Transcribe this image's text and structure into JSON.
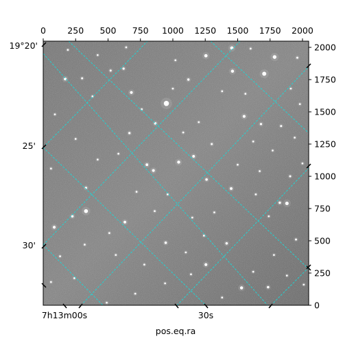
{
  "chart_data": {
    "type": "scatter",
    "subtype": "astronomical-image-wcs",
    "xlabel": "pos.eq.ra",
    "pixel_axes": {
      "xlim": [
        0,
        2048
      ],
      "ylim": [
        0,
        2048
      ],
      "top_ticks": [
        "0",
        "250",
        "500",
        "750",
        "1000",
        "1250",
        "1500",
        "1750",
        "2000"
      ],
      "top_tick_values": [
        0,
        250,
        500,
        750,
        1000,
        1250,
        1500,
        1750,
        2000
      ],
      "right_ticks": [
        "0",
        "250",
        "500",
        "750",
        "1000",
        "1250",
        "1500",
        "1750",
        "2000"
      ],
      "right_tick_values": [
        0,
        250,
        500,
        750,
        1000,
        1250,
        1500,
        1750,
        2000
      ]
    },
    "ra_ticks": [
      {
        "label": "7h13m00s",
        "value": "7h13m00s"
      },
      {
        "label": "30s",
        "value": "7h13m30s"
      }
    ],
    "dec_ticks": [
      {
        "label": "19°20'",
        "value": "19°20'"
      },
      {
        "label": "25'",
        "value": "19°25'"
      },
      {
        "label": "30'",
        "value": "19°30'"
      }
    ],
    "grid": true,
    "grid_color": "#22d3d3",
    "background_color": "#7a7a7a",
    "stars": [
      {
        "x": 950,
        "y": 1565,
        "m": 4.2
      },
      {
        "x": 1705,
        "y": 1795,
        "m": 3.2
      },
      {
        "x": 1785,
        "y": 1925,
        "m": 2.8
      },
      {
        "x": 330,
        "y": 730,
        "m": 3.0
      },
      {
        "x": 1880,
        "y": 790,
        "m": 2.6
      },
      {
        "x": 1255,
        "y": 1935,
        "m": 2.4
      },
      {
        "x": 1455,
        "y": 1995,
        "m": 2.4
      },
      {
        "x": 1460,
        "y": 1815,
        "m": 2.2
      },
      {
        "x": 680,
        "y": 1650,
        "m": 2.0
      },
      {
        "x": 1550,
        "y": 1465,
        "m": 2.0
      },
      {
        "x": 1045,
        "y": 1110,
        "m": 2.2
      },
      {
        "x": 850,
        "y": 1045,
        "m": 2.0
      },
      {
        "x": 800,
        "y": 1090,
        "m": 1.8
      },
      {
        "x": 170,
        "y": 1755,
        "m": 2.0
      },
      {
        "x": 1120,
        "y": 1750,
        "m": 1.5
      },
      {
        "x": 1160,
        "y": 1155,
        "m": 1.8
      },
      {
        "x": 1260,
        "y": 975,
        "m": 1.6
      },
      {
        "x": 1450,
        "y": 905,
        "m": 1.8
      },
      {
        "x": 1825,
        "y": 795,
        "m": 1.6
      },
      {
        "x": 1415,
        "y": 480,
        "m": 1.6
      },
      {
        "x": 630,
        "y": 645,
        "m": 1.8
      },
      {
        "x": 945,
        "y": 485,
        "m": 1.6
      },
      {
        "x": 1255,
        "y": 315,
        "m": 2.0
      },
      {
        "x": 1530,
        "y": 135,
        "m": 2.2
      },
      {
        "x": 1735,
        "y": 140,
        "m": 1.6
      },
      {
        "x": 85,
        "y": 605,
        "m": 2.0
      },
      {
        "x": 225,
        "y": 690,
        "m": 1.6
      },
      {
        "x": 330,
        "y": 910,
        "m": 1.4
      },
      {
        "x": 1905,
        "y": 1000,
        "m": 1.2
      },
      {
        "x": 1835,
        "y": 1390,
        "m": 1.2
      },
      {
        "x": 1680,
        "y": 1405,
        "m": 1.4
      },
      {
        "x": 1960,
        "y": 1920,
        "m": 1.2
      },
      {
        "x": 665,
        "y": 1335,
        "m": 1.4
      },
      {
        "x": 865,
        "y": 1410,
        "m": 1.6
      },
      {
        "x": 620,
        "y": 1835,
        "m": 1.4
      },
      {
        "x": 300,
        "y": 1760,
        "m": 1.2
      },
      {
        "x": 520,
        "y": 1820,
        "m": 1.2
      },
      {
        "x": 420,
        "y": 1940,
        "m": 1.0
      },
      {
        "x": 380,
        "y": 1620,
        "m": 1.0
      },
      {
        "x": 1020,
        "y": 1900,
        "m": 1.0
      },
      {
        "x": 1300,
        "y": 1250,
        "m": 1.2
      },
      {
        "x": 1380,
        "y": 1660,
        "m": 1.0
      },
      {
        "x": 1620,
        "y": 1270,
        "m": 1.0
      },
      {
        "x": 1980,
        "y": 1560,
        "m": 1.0
      },
      {
        "x": 1940,
        "y": 1300,
        "m": 1.0
      },
      {
        "x": 1950,
        "y": 510,
        "m": 1.2
      },
      {
        "x": 1780,
        "y": 390,
        "m": 1.0
      },
      {
        "x": 1740,
        "y": 690,
        "m": 1.0
      },
      {
        "x": 1500,
        "y": 1090,
        "m": 1.0
      },
      {
        "x": 1670,
        "y": 1040,
        "m": 1.0
      },
      {
        "x": 1150,
        "y": 680,
        "m": 1.0
      },
      {
        "x": 1240,
        "y": 540,
        "m": 1.0
      },
      {
        "x": 1100,
        "y": 410,
        "m": 1.0
      },
      {
        "x": 780,
        "y": 315,
        "m": 1.0
      },
      {
        "x": 560,
        "y": 390,
        "m": 1.0
      },
      {
        "x": 320,
        "y": 470,
        "m": 1.0
      },
      {
        "x": 130,
        "y": 380,
        "m": 1.0
      },
      {
        "x": 490,
        "y": 20,
        "m": 1.0
      },
      {
        "x": 710,
        "y": 90,
        "m": 1.0
      },
      {
        "x": 940,
        "y": 170,
        "m": 1.0
      },
      {
        "x": 1620,
        "y": 260,
        "m": 1.0
      },
      {
        "x": 1880,
        "y": 230,
        "m": 1.0
      },
      {
        "x": 2010,
        "y": 160,
        "m": 1.0
      },
      {
        "x": 580,
        "y": 1175,
        "m": 1.0
      },
      {
        "x": 420,
        "y": 1130,
        "m": 1.0
      },
      {
        "x": 250,
        "y": 1290,
        "m": 1.0
      },
      {
        "x": 90,
        "y": 1480,
        "m": 1.0
      },
      {
        "x": 60,
        "y": 1060,
        "m": 1.0
      },
      {
        "x": 720,
        "y": 880,
        "m": 1.0
      },
      {
        "x": 960,
        "y": 860,
        "m": 1.0
      },
      {
        "x": 1080,
        "y": 1340,
        "m": 1.0
      },
      {
        "x": 1200,
        "y": 1420,
        "m": 1.0
      },
      {
        "x": 1560,
        "y": 1640,
        "m": 1.0
      },
      {
        "x": 1770,
        "y": 1200,
        "m": 1.0
      },
      {
        "x": 2000,
        "y": 1100,
        "m": 1.0
      },
      {
        "x": 1640,
        "y": 860,
        "m": 1.0
      },
      {
        "x": 1320,
        "y": 720,
        "m": 1.0
      },
      {
        "x": 860,
        "y": 730,
        "m": 1.0
      },
      {
        "x": 510,
        "y": 560,
        "m": 1.0
      },
      {
        "x": 240,
        "y": 210,
        "m": 1.0
      },
      {
        "x": 60,
        "y": 180,
        "m": 1.0
      },
      {
        "x": 1380,
        "y": 60,
        "m": 1.0
      },
      {
        "x": 1140,
        "y": 240,
        "m": 1.0
      },
      {
        "x": 760,
        "y": 1520,
        "m": 1.0
      },
      {
        "x": 1000,
        "y": 1680,
        "m": 1.0
      },
      {
        "x": 1910,
        "y": 1680,
        "m": 1.0
      },
      {
        "x": 190,
        "y": 1980,
        "m": 1.0
      },
      {
        "x": 640,
        "y": 2000,
        "m": 1.0
      },
      {
        "x": 1600,
        "y": 1990,
        "m": 1.0
      }
    ]
  }
}
